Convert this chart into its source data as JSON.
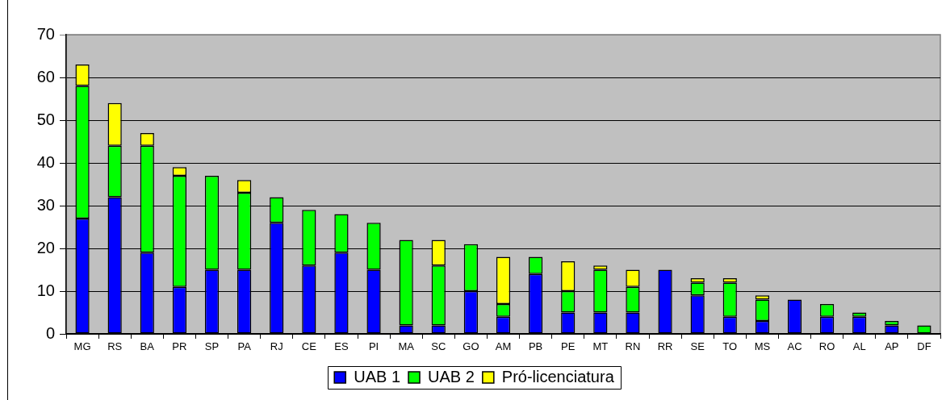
{
  "chart_data": {
    "type": "bar",
    "stacked": true,
    "categories": [
      "MG",
      "RS",
      "BA",
      "PR",
      "SP",
      "PA",
      "RJ",
      "CE",
      "ES",
      "PI",
      "MA",
      "SC",
      "GO",
      "AM",
      "PB",
      "PE",
      "MT",
      "RN",
      "RR",
      "SE",
      "TO",
      "MS",
      "AC",
      "RO",
      "AL",
      "AP",
      "DF"
    ],
    "series": [
      {
        "name": "UAB 1",
        "color": "#0000ff",
        "values": [
          27,
          32,
          19,
          11,
          15,
          15,
          26,
          16,
          19,
          15,
          2,
          2,
          10,
          4,
          14,
          5,
          5,
          5,
          15,
          9,
          4,
          3,
          8,
          4,
          4,
          2,
          0
        ]
      },
      {
        "name": "UAB 2",
        "color": "#00ff00",
        "values": [
          31,
          12,
          25,
          26,
          22,
          18,
          6,
          13,
          9,
          11,
          20,
          14,
          11,
          3,
          4,
          5,
          10,
          6,
          0,
          3,
          8,
          5,
          0,
          3,
          1,
          1,
          2
        ]
      },
      {
        "name": "Pró-licenciatura",
        "color": "#ffff00",
        "values": [
          5,
          10,
          3,
          2,
          0,
          3,
          0,
          0,
          0,
          0,
          0,
          6,
          0,
          11,
          0,
          7,
          1,
          4,
          0,
          1,
          1,
          1,
          0,
          0,
          0,
          0,
          0
        ]
      }
    ],
    "ylim": [
      0,
      70
    ],
    "yticks": [
      0,
      10,
      20,
      30,
      40,
      50,
      60,
      70
    ],
    "grid": "y",
    "legend": "bottom"
  }
}
